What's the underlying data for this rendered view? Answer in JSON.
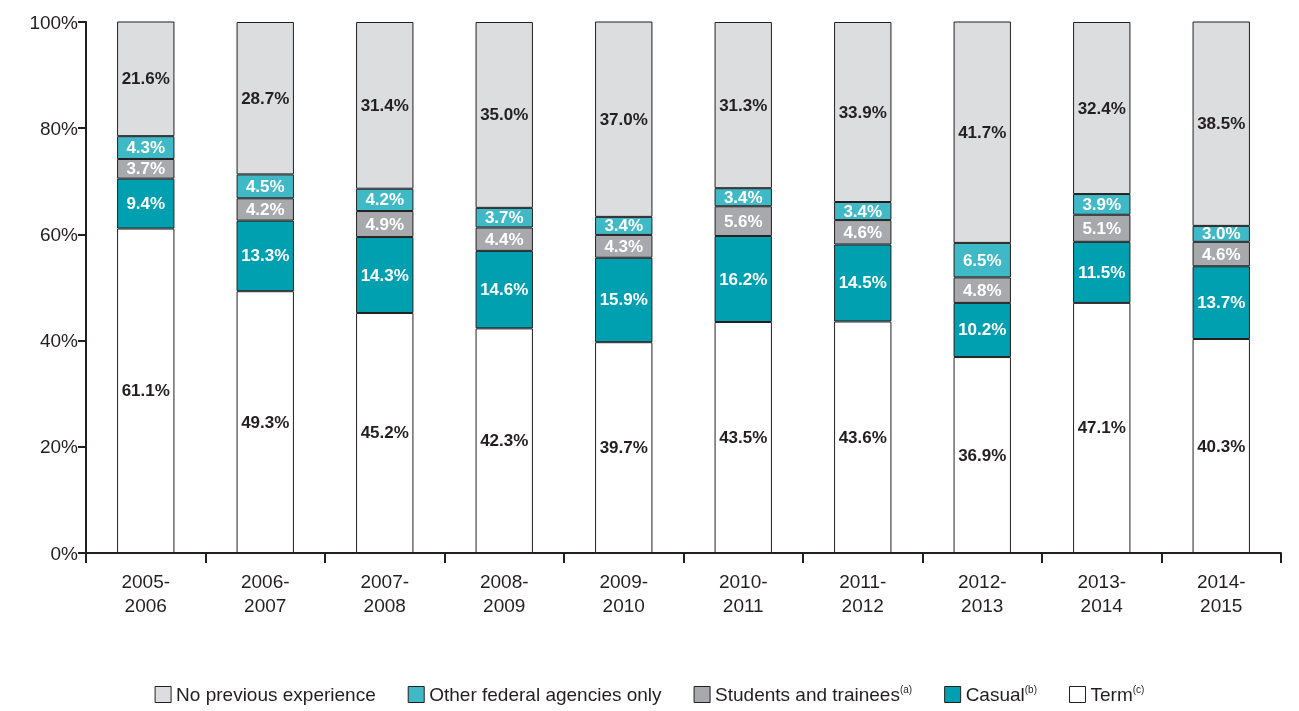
{
  "chart_data": {
    "type": "bar",
    "stacked": true,
    "categories": [
      "2005-2006",
      "2006-2007",
      "2007-2008",
      "2008-2009",
      "2009-2010",
      "2010-2011",
      "2011-2012",
      "2012-2013",
      "2013-2014",
      "2014-2015"
    ],
    "ylim": [
      0,
      100
    ],
    "yticks": [
      {
        "value": 0,
        "label": "0%"
      },
      {
        "value": 20,
        "label": "20%"
      },
      {
        "value": 40,
        "label": "40%"
      },
      {
        "value": 60,
        "label": "60%"
      },
      {
        "value": 80,
        "label": "80%"
      },
      {
        "value": 100,
        "label": "100%"
      }
    ],
    "grid": false,
    "legend": "bottom",
    "series": [
      {
        "name": "Term$^{(c)}$",
        "color": "#ffffff",
        "values": [
          61.1,
          49.3,
          45.2,
          42.3,
          39.7,
          43.5,
          43.6,
          36.9,
          47.1,
          40.3
        ],
        "value_labels": [
          "61.1%",
          "49.3%",
          "45.2%",
          "42.3%",
          "39.7%",
          "43.5%",
          "43.6%",
          "36.9%",
          "47.1%",
          "40.3%"
        ]
      },
      {
        "name": "Casual$^{(b)}$",
        "color": "#00a0b0",
        "values": [
          9.4,
          13.3,
          14.3,
          14.6,
          15.9,
          16.2,
          14.5,
          10.2,
          11.5,
          13.7
        ],
        "value_labels": [
          "9.4%",
          "13.3%",
          "14.3%",
          "14.6%",
          "15.9%",
          "16.2%",
          "14.5%",
          "10.2%",
          "11.5%",
          "13.7%"
        ]
      },
      {
        "name": "Students and trainees$^{(a)}$",
        "color": "#a7a9ac",
        "values": [
          3.7,
          4.2,
          4.9,
          4.4,
          4.3,
          5.6,
          4.6,
          4.8,
          5.1,
          4.6
        ],
        "value_labels": [
          "3.7%",
          "4.2%",
          "4.9%",
          "4.4%",
          "4.3%",
          "5.6%",
          "4.6%",
          "4.8%",
          "5.1%",
          "4.6%"
        ]
      },
      {
        "name": "Other federal agencies only",
        "color": "#40b9c6",
        "values": [
          4.3,
          4.5,
          4.2,
          3.7,
          3.4,
          3.4,
          3.4,
          6.5,
          3.9,
          3.0
        ],
        "value_labels": [
          "4.3%",
          "4.5%",
          "4.2%",
          "3.7%",
          "3.4%",
          "3.4%",
          "3.4%",
          "6.5%",
          "3.9%",
          "3.0%"
        ]
      },
      {
        "name": "No previous experience",
        "color": "#dcddde",
        "values": [
          21.6,
          28.7,
          31.4,
          35.0,
          37.0,
          31.3,
          33.9,
          41.7,
          32.4,
          38.5
        ],
        "value_labels": [
          "21.6%",
          "28.7%",
          "31.4%",
          "35.0%",
          "37.0%",
          "31.3%",
          "33.9%",
          "41.7%",
          "32.4%",
          "38.5%"
        ]
      }
    ]
  }
}
